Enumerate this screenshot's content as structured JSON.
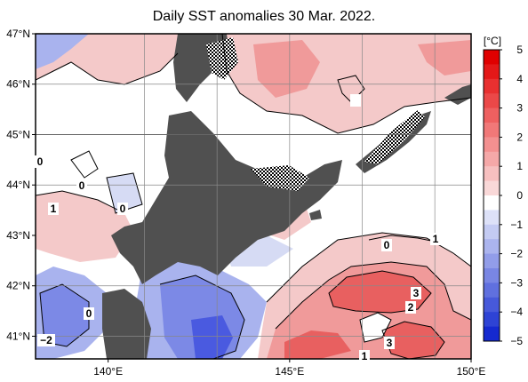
{
  "title": "Daily SST anomalies 30 Mar. 2022.",
  "lat_labels": [
    "47°N",
    "46°N",
    "45°N",
    "44°N",
    "43°N",
    "42°N",
    "41°N"
  ],
  "lat_values": [
    47,
    46,
    45,
    44,
    43,
    42,
    41
  ],
  "lon_labels": [
    "140°E",
    "145°E",
    "150°E"
  ],
  "lon_values": [
    140,
    145,
    150
  ],
  "colorbar": {
    "unit": "[°C]",
    "labels": [
      "5",
      "4",
      "3",
      "2",
      "1",
      "0",
      "−1",
      "−2",
      "−3",
      "−4",
      "−5"
    ],
    "values": [
      5,
      4,
      3,
      2,
      1,
      0,
      -1,
      -2,
      -3,
      -4,
      -5
    ]
  },
  "contour_labels": [
    {
      "text": "0"
    },
    {
      "text": "0"
    },
    {
      "text": "1"
    },
    {
      "text": "0"
    },
    {
      "text": "0"
    },
    {
      "text": "1"
    },
    {
      "text": "0"
    },
    {
      "text": "3"
    },
    {
      "text": "2"
    },
    {
      "text": "3"
    },
    {
      "text": "1"
    },
    {
      "text": "−2"
    }
  ],
  "colors": {
    "land": "#505050",
    "pos1": "#f4c9c9",
    "pos2": "#f09a9a",
    "pos3": "#e86060",
    "pos4": "#e03030",
    "neg1": "#d6dbf4",
    "neg2": "#a9b3ee",
    "neg3": "#7c89e6",
    "neg4": "#4a5ae0"
  }
}
